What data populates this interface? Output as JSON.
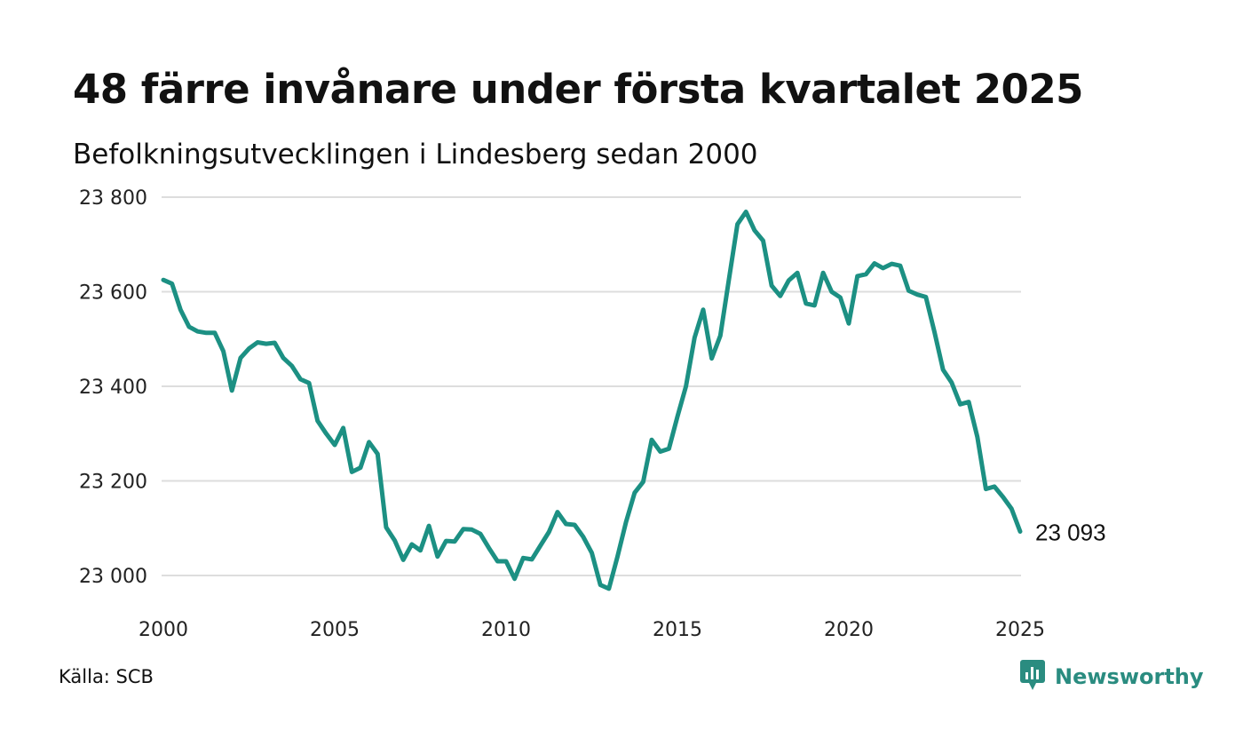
{
  "title": "48 färre invånare under första kvartalet 2025",
  "subtitle": "Befolkningsutvecklingen i Lindesberg sedan 2000",
  "source": "Källa: SCB",
  "brand": {
    "name": "Newsworthy",
    "icon": "newsworthy-logo-icon"
  },
  "colors": {
    "line": "#1c9083",
    "grid": "#dddddd",
    "brand": "#2a8c80"
  },
  "chart_data": {
    "type": "line",
    "title": "48 färre invånare under första kvartalet 2025",
    "subtitle": "Befolkningsutvecklingen i Lindesberg sedan 2000",
    "xlabel": "",
    "ylabel": "",
    "xlim": [
      2000,
      2025
    ],
    "ylim": [
      22950,
      23820
    ],
    "x_ticks": [
      2000,
      2005,
      2010,
      2015,
      2020,
      2025
    ],
    "x_tick_labels": [
      "2000",
      "2005",
      "2010",
      "2015",
      "2020",
      "2025"
    ],
    "y_ticks": [
      23000,
      23200,
      23400,
      23600,
      23800
    ],
    "y_tick_labels": [
      "23 000",
      "23 200",
      "23 400",
      "23 600",
      "23 800"
    ],
    "grid": "horizontal",
    "end_label": "23 093",
    "series": [
      {
        "x": [
          2000.0,
          2000.25,
          2000.5,
          2000.75,
          2001.0,
          2001.25,
          2001.5,
          2001.75,
          2002.0,
          2002.25,
          2002.5,
          2002.75,
          2003.0,
          2003.25,
          2003.5,
          2003.75,
          2004.0,
          2004.25,
          2004.5,
          2004.75,
          2005.0,
          2005.25,
          2005.5,
          2005.75,
          2006.0,
          2006.25,
          2006.5,
          2006.75,
          2007.0,
          2007.25,
          2007.5,
          2007.75,
          2008.0,
          2008.25,
          2008.5,
          2008.75,
          2009.0,
          2009.25,
          2009.5,
          2009.75,
          2010.0,
          2010.25,
          2010.5,
          2010.75,
          2011.0,
          2011.25,
          2011.5,
          2011.75,
          2012.0,
          2012.25,
          2012.5,
          2012.75,
          2013.0,
          2013.25,
          2013.5,
          2013.75,
          2014.0,
          2014.25,
          2014.5,
          2014.75,
          2015.0,
          2015.25,
          2015.5,
          2015.75,
          2016.0,
          2016.25,
          2016.5,
          2016.75,
          2017.0,
          2017.25,
          2017.5,
          2017.75,
          2018.0,
          2018.25,
          2018.5,
          2018.75,
          2019.0,
          2019.25,
          2019.5,
          2019.75,
          2020.0,
          2020.25,
          2020.5,
          2020.75,
          2021.0,
          2021.25,
          2021.5,
          2021.75,
          2022.0,
          2022.25,
          2022.5,
          2022.75,
          2023.0,
          2023.25,
          2023.5,
          2023.75,
          2024.0,
          2024.25,
          2024.5,
          2024.75,
          2025.0
        ],
        "y": [
          23625,
          23617,
          23562,
          23526,
          23516,
          23513,
          23513,
          23474,
          23391,
          23460,
          23480,
          23493,
          23490,
          23492,
          23460,
          23443,
          23415,
          23407,
          23327,
          23300,
          23276,
          23312,
          23219,
          23228,
          23282,
          23257,
          23102,
          23074,
          23033,
          23066,
          23053,
          23105,
          23040,
          23073,
          23072,
          23098,
          23097,
          23088,
          23058,
          23030,
          23030,
          22993,
          23037,
          23034,
          23063,
          23092,
          23134,
          23109,
          23107,
          23082,
          23048,
          22980,
          22972,
          23040,
          23113,
          23175,
          23198,
          23287,
          23262,
          23268,
          23336,
          23400,
          23503,
          23562,
          23459,
          23507,
          23625,
          23743,
          23769,
          23730,
          23708,
          23613,
          23591,
          23624,
          23640,
          23575,
          23571,
          23640,
          23600,
          23588,
          23533,
          23633,
          23637,
          23660,
          23650,
          23659,
          23655,
          23602,
          23594,
          23589,
          23515,
          23435,
          23408,
          23362,
          23367,
          23293,
          23183,
          23188,
          23166,
          23141,
          23093
        ]
      }
    ]
  }
}
